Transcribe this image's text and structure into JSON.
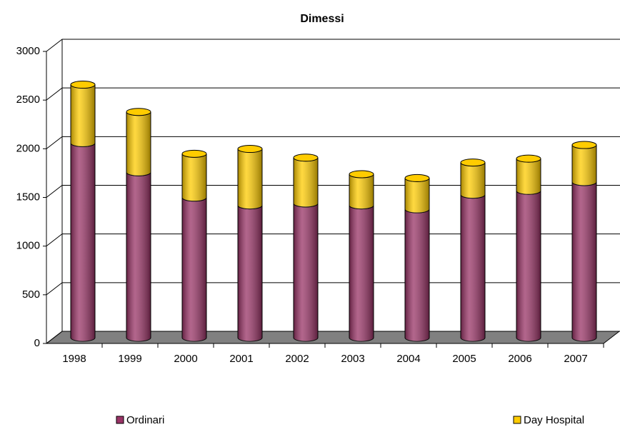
{
  "chart_data": {
    "type": "bar",
    "stacked": true,
    "title": "Dimessi",
    "categories": [
      "1998",
      "1999",
      "2000",
      "2001",
      "2002",
      "2003",
      "2004",
      "2005",
      "2006",
      "2007"
    ],
    "series": [
      {
        "name": "Ordinari",
        "color": "#993366",
        "values": [
          2000,
          1700,
          1440,
          1360,
          1380,
          1360,
          1320,
          1470,
          1510,
          1600
        ]
      },
      {
        "name": "Day Hospital",
        "color": "#ffcc00",
        "values": [
          600,
          620,
          450,
          580,
          470,
          320,
          320,
          330,
          330,
          380
        ]
      }
    ],
    "ylim": [
      0,
      3000
    ],
    "yticks": [
      0,
      500,
      1000,
      1500,
      2000,
      2500,
      3000
    ],
    "grid": true,
    "legend": "bottom"
  }
}
